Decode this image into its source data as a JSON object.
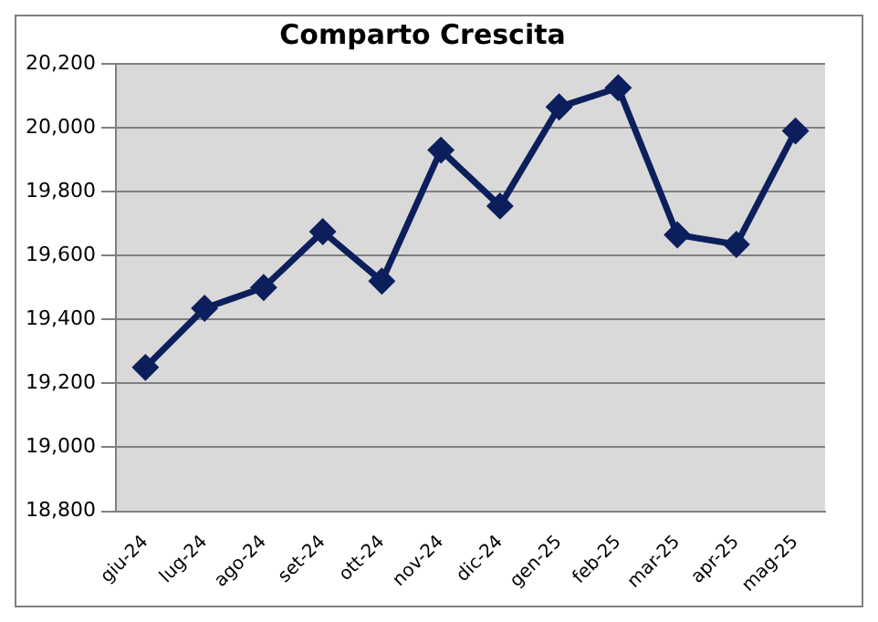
{
  "chart_data": {
    "type": "line",
    "title": "Comparto Crescita",
    "categories": [
      "giu-24",
      "lug-24",
      "ago-24",
      "set-24",
      "ott-24",
      "nov-24",
      "dic-24",
      "gen-25",
      "feb-25",
      "mar-25",
      "apr-25",
      "mag-25"
    ],
    "series": [
      {
        "color": "#0c1f5c",
        "values": [
          19250,
          19435,
          19500,
          19675,
          19520,
          19930,
          19755,
          20065,
          20125,
          19665,
          19635,
          19990
        ]
      }
    ],
    "ylim": [
      18800,
      20200
    ],
    "yticks": [
      {
        "value": 18800,
        "label": "18,800"
      },
      {
        "value": 19000,
        "label": "19,000"
      },
      {
        "value": 19200,
        "label": "19,200"
      },
      {
        "value": 19400,
        "label": "19,400"
      },
      {
        "value": 19600,
        "label": "19,600"
      },
      {
        "value": 19800,
        "label": "19,800"
      },
      {
        "value": 20000,
        "label": "20,000"
      },
      {
        "value": 20200,
        "label": "20,200"
      }
    ],
    "grid": "y",
    "legend": false,
    "marker": "diamond",
    "line_style": "solid"
  }
}
